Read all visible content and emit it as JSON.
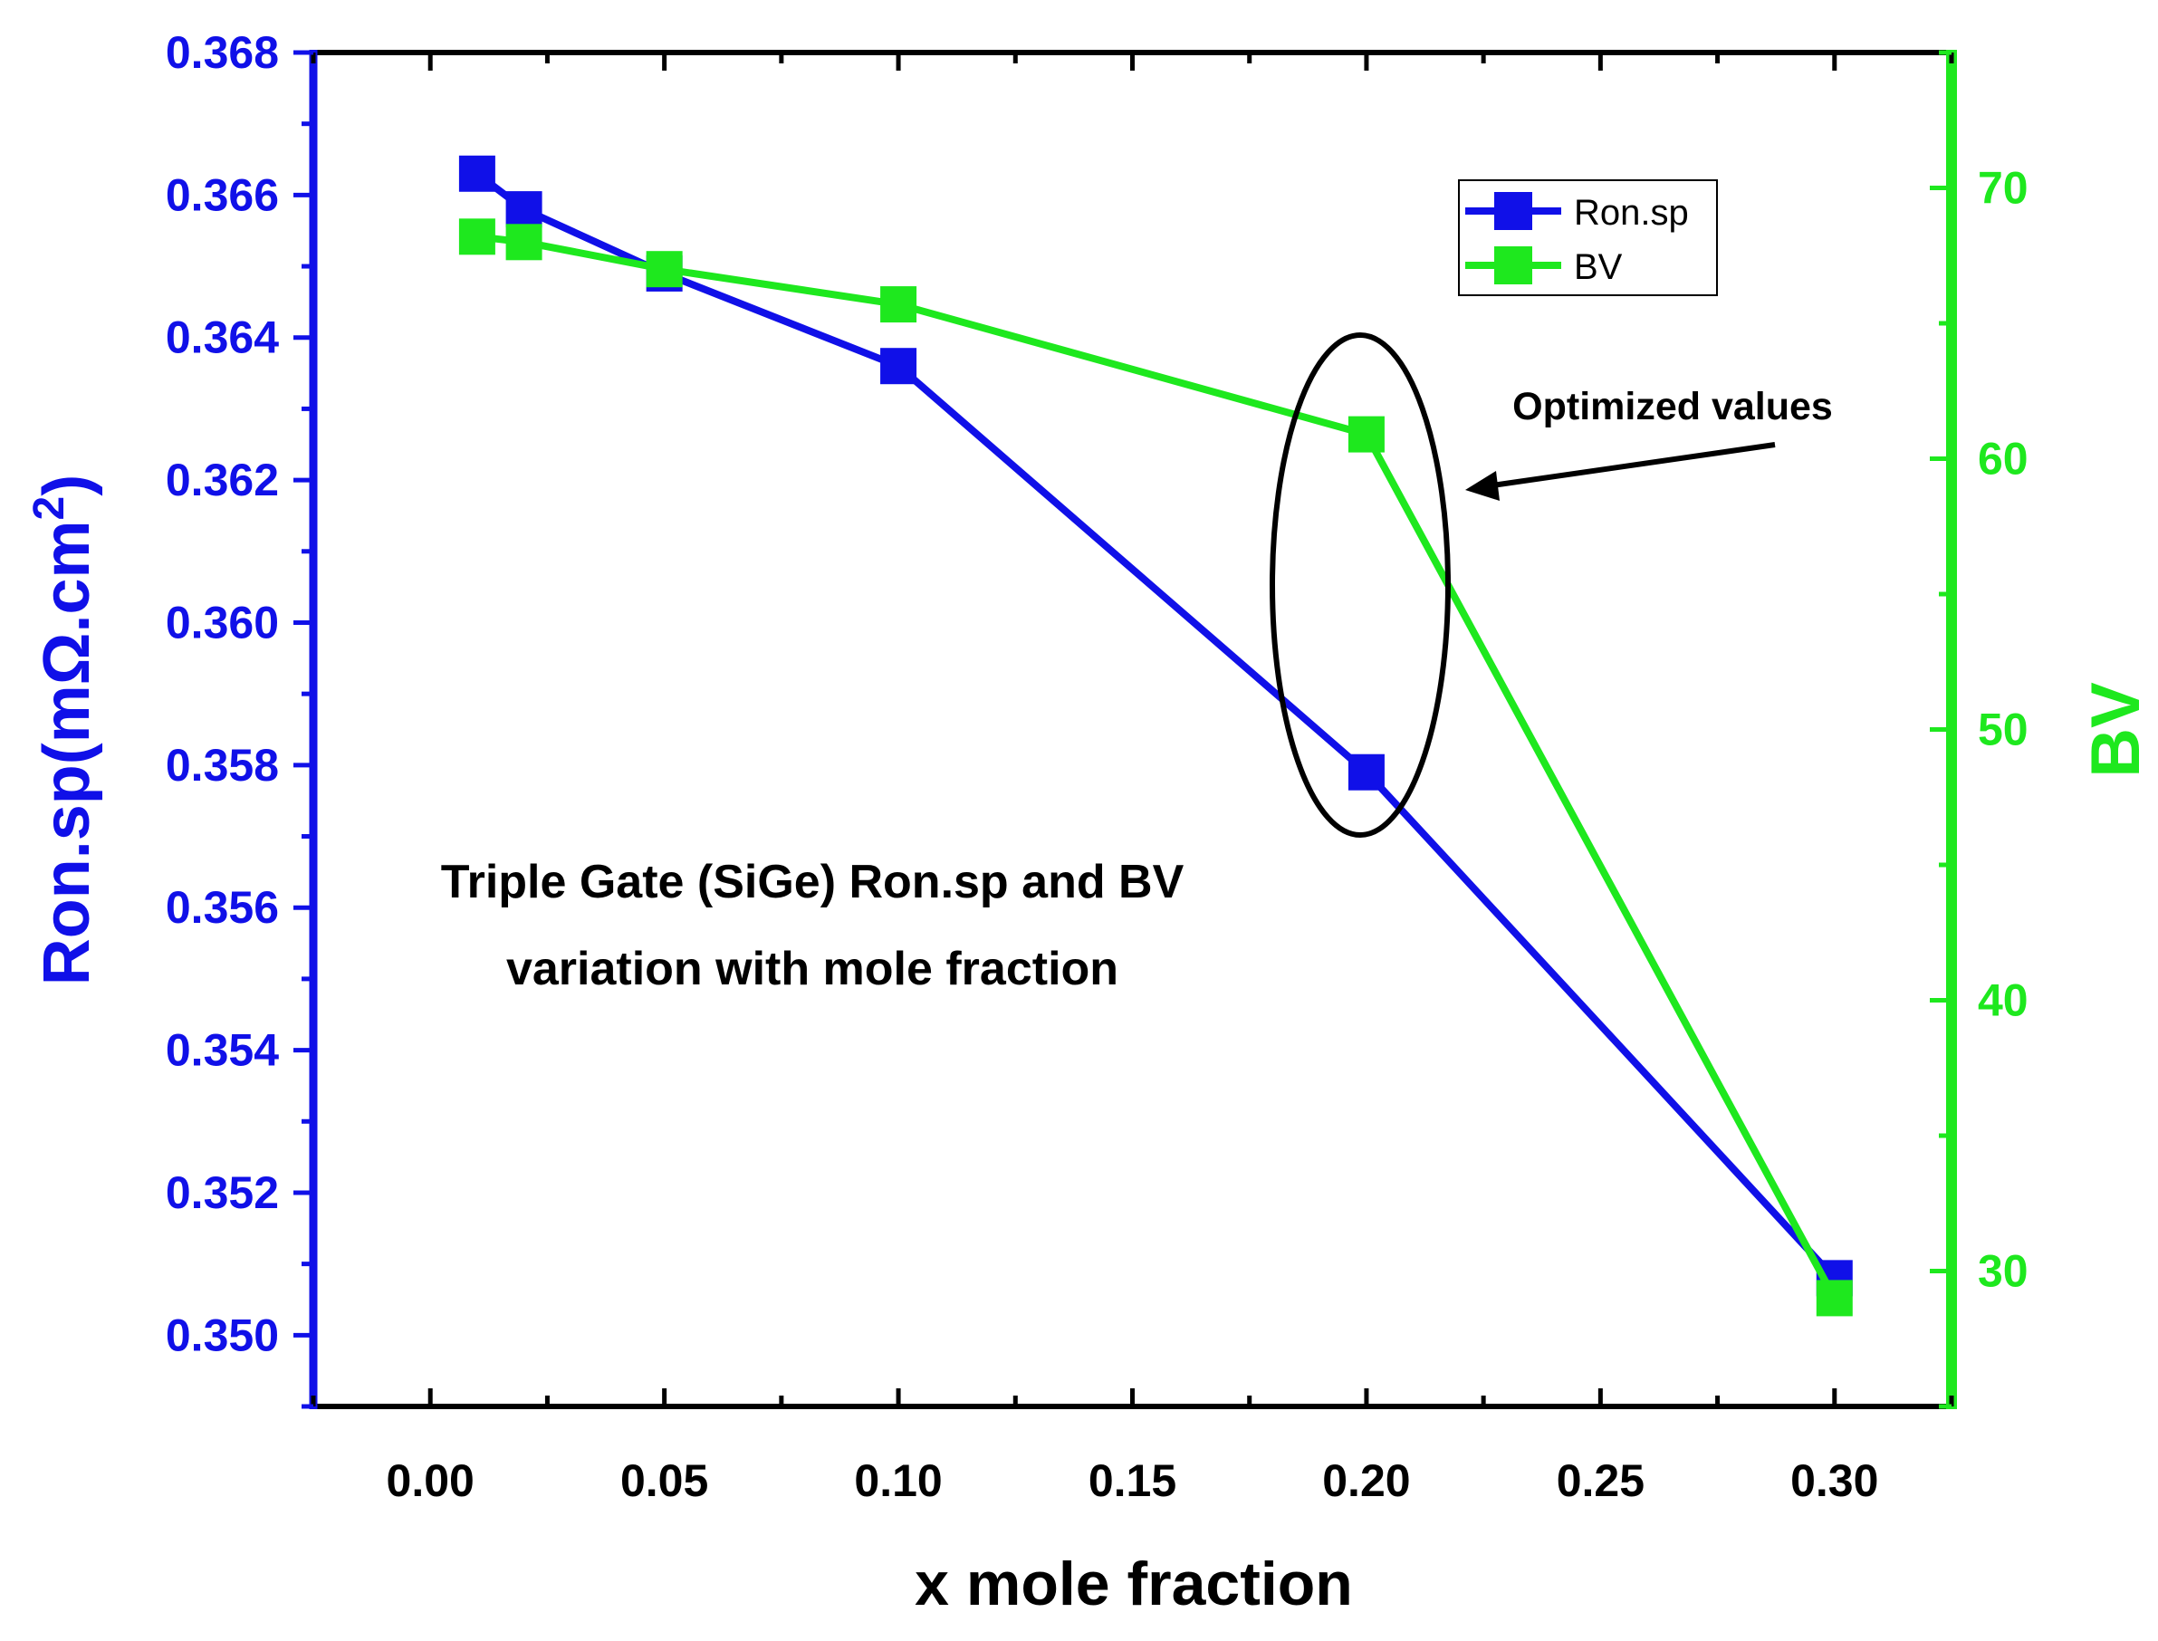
{
  "chart_data": {
    "type": "line",
    "title": "Triple Gate (SiGe) Ron.sp and BV variation with mole fraction",
    "title_lines": [
      "Triple Gate (SiGe) Ron.sp and BV",
      "variation with mole fraction"
    ],
    "xlabel": "x mole fraction",
    "ylabel_left": "Ron.sp(mΩ.cm",
    "ylabel_left_superscript": "2",
    "ylabel_left_close": ")",
    "ylabel_right": "BV",
    "xlim": [
      -0.025,
      0.325
    ],
    "ylim_left": [
      0.349,
      0.368
    ],
    "ylim_right": [
      25,
      75
    ],
    "x_ticks": [
      0.0,
      0.05,
      0.1,
      0.15,
      0.2,
      0.25,
      0.3
    ],
    "x_tick_labels": [
      "0.00",
      "0.05",
      "0.10",
      "0.15",
      "0.20",
      "0.25",
      "0.30"
    ],
    "y_left_ticks": [
      0.35,
      0.352,
      0.354,
      0.356,
      0.358,
      0.36,
      0.362,
      0.364,
      0.366,
      0.368
    ],
    "y_left_tick_labels": [
      "0.350",
      "0.352",
      "0.354",
      "0.356",
      "0.358",
      "0.360",
      "0.362",
      "0.364",
      "0.366",
      "0.368"
    ],
    "y_right_ticks": [
      30,
      40,
      50,
      60,
      70
    ],
    "y_right_tick_labels": [
      "30",
      "40",
      "50",
      "60",
      "70"
    ],
    "x": [
      0.01,
      0.02,
      0.05,
      0.1,
      0.2,
      0.3
    ],
    "series": [
      {
        "name": "Ron.sp",
        "axis": "left",
        "color": "#1010e8",
        "values": [
          0.3663,
          0.3658,
          0.3649,
          0.3636,
          0.3579,
          0.3508
        ]
      },
      {
        "name": "BV",
        "axis": "right",
        "color": "#1ee81e",
        "values": [
          68.2,
          68.0,
          67.0,
          65.7,
          60.9,
          29.0
        ]
      }
    ],
    "legend_position": "top-right",
    "annotation": {
      "text": "Optimized values",
      "target_x": 0.2
    },
    "grid": false
  },
  "colors": {
    "left_axis": "#1010e8",
    "right_axis": "#1ee81e",
    "frame": "#000000",
    "annotation": "#000000"
  }
}
